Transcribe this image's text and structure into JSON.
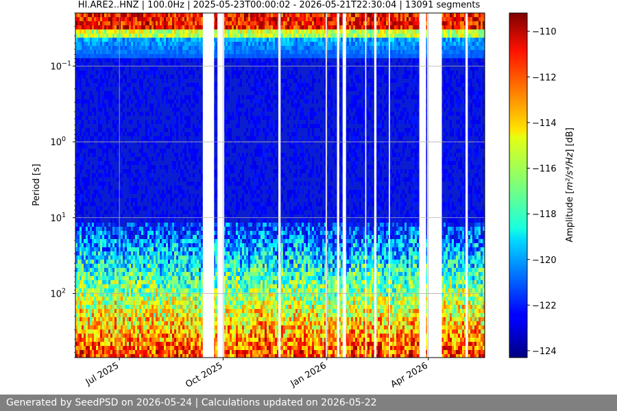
{
  "chart_data": {
    "type": "heatmap",
    "title": "HI.ARE2..HNZ | 100.0Hz | 2025-05-23T00:00:02 - 2026-05-21T22:30:04 | 13091 segments",
    "ylabel": "Period [s]",
    "y_scale": "log",
    "y_inverted": true,
    "ylim": [
      0.02,
      700
    ],
    "y_ticks": [
      {
        "value": 0.1,
        "label": "10",
        "exp": "−1"
      },
      {
        "value": 1,
        "label": "10",
        "exp": "0"
      },
      {
        "value": 10,
        "label": "10",
        "exp": "1"
      },
      {
        "value": 100,
        "label": "10",
        "exp": "2"
      }
    ],
    "x_axis_type": "date",
    "xlim": [
      "2025-05-23",
      "2026-05-21"
    ],
    "x_ticks": [
      {
        "value": "2025-07-01",
        "label": "Jul 2025"
      },
      {
        "value": "2025-10-01",
        "label": "Oct 2025"
      },
      {
        "value": "2026-01-01",
        "label": "Jan 2026"
      },
      {
        "value": "2026-04-01",
        "label": "Apr 2026"
      }
    ],
    "grid": true,
    "colormap": "jet",
    "colorbar": {
      "label_prefix": "Amplitude [",
      "label_unit": "m²/s⁴/Hz",
      "label_suffix": "] [dB]",
      "range": [
        -124.3,
        -109.2
      ],
      "ticks": [
        -110,
        -112,
        -114,
        -116,
        -118,
        -120,
        -122,
        -124
      ]
    },
    "gaps": [
      [
        "2025-09-13",
        "2025-09-23"
      ],
      [
        "2025-09-26",
        "2025-10-02"
      ],
      [
        "2025-11-19",
        "2025-11-21"
      ],
      [
        "2025-12-31",
        "2026-01-01"
      ],
      [
        "2026-01-10",
        "2026-01-12"
      ],
      [
        "2026-01-15",
        "2026-01-18"
      ],
      [
        "2026-02-04",
        "2026-02-05"
      ],
      [
        "2026-02-12",
        "2026-02-14"
      ],
      [
        "2026-02-25",
        "2026-02-26"
      ],
      [
        "2026-03-24",
        "2026-03-30"
      ],
      [
        "2026-03-31",
        "2026-04-13"
      ],
      [
        "2026-05-04",
        "2026-05-06"
      ]
    ]
  },
  "footer": {
    "text": "Generated by SeedPSD on 2026-05-24 | Calculations updated on 2026-05-22"
  }
}
